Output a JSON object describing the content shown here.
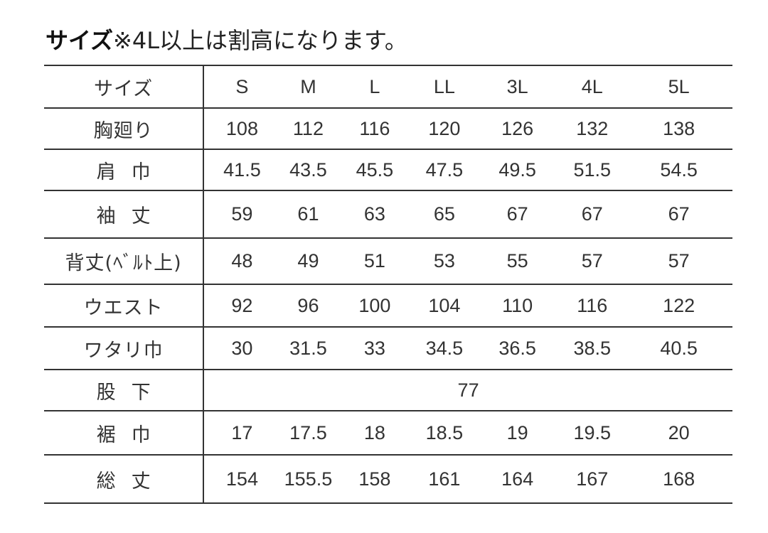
{
  "title": {
    "bold": "サイズ",
    "rest": "※4L以上は割高になります。"
  },
  "table": {
    "header": {
      "label": "サイズ",
      "sizes": [
        "S",
        "M",
        "L",
        "LL",
        "3L",
        "4L",
        "5L"
      ]
    },
    "rows": [
      {
        "label": "胸廻り",
        "values": [
          "108",
          "112",
          "116",
          "120",
          "126",
          "132",
          "138"
        ]
      },
      {
        "label": "肩巾",
        "values": [
          "41.5",
          "43.5",
          "45.5",
          "47.5",
          "49.5",
          "51.5",
          "54.5"
        ]
      },
      {
        "label": "袖丈",
        "values": [
          "59",
          "61",
          "63",
          "65",
          "67",
          "67",
          "67"
        ]
      },
      {
        "label": "背丈(ﾍﾞﾙﾄ上)",
        "values": [
          "48",
          "49",
          "51",
          "53",
          "55",
          "57",
          "57"
        ]
      },
      {
        "label": "ウエスト",
        "values": [
          "92",
          "96",
          "100",
          "104",
          "110",
          "116",
          "122"
        ]
      },
      {
        "label": "ワタリ巾",
        "values": [
          "30",
          "31.5",
          "33",
          "34.5",
          "36.5",
          "38.5",
          "40.5"
        ]
      },
      {
        "label": "股下",
        "value": "77"
      },
      {
        "label": "裾巾",
        "values": [
          "17",
          "17.5",
          "18",
          "18.5",
          "19",
          "19.5",
          "20"
        ]
      },
      {
        "label": "総丈",
        "values": [
          "154",
          "155.5",
          "158",
          "161",
          "164",
          "167",
          "168"
        ]
      }
    ]
  }
}
